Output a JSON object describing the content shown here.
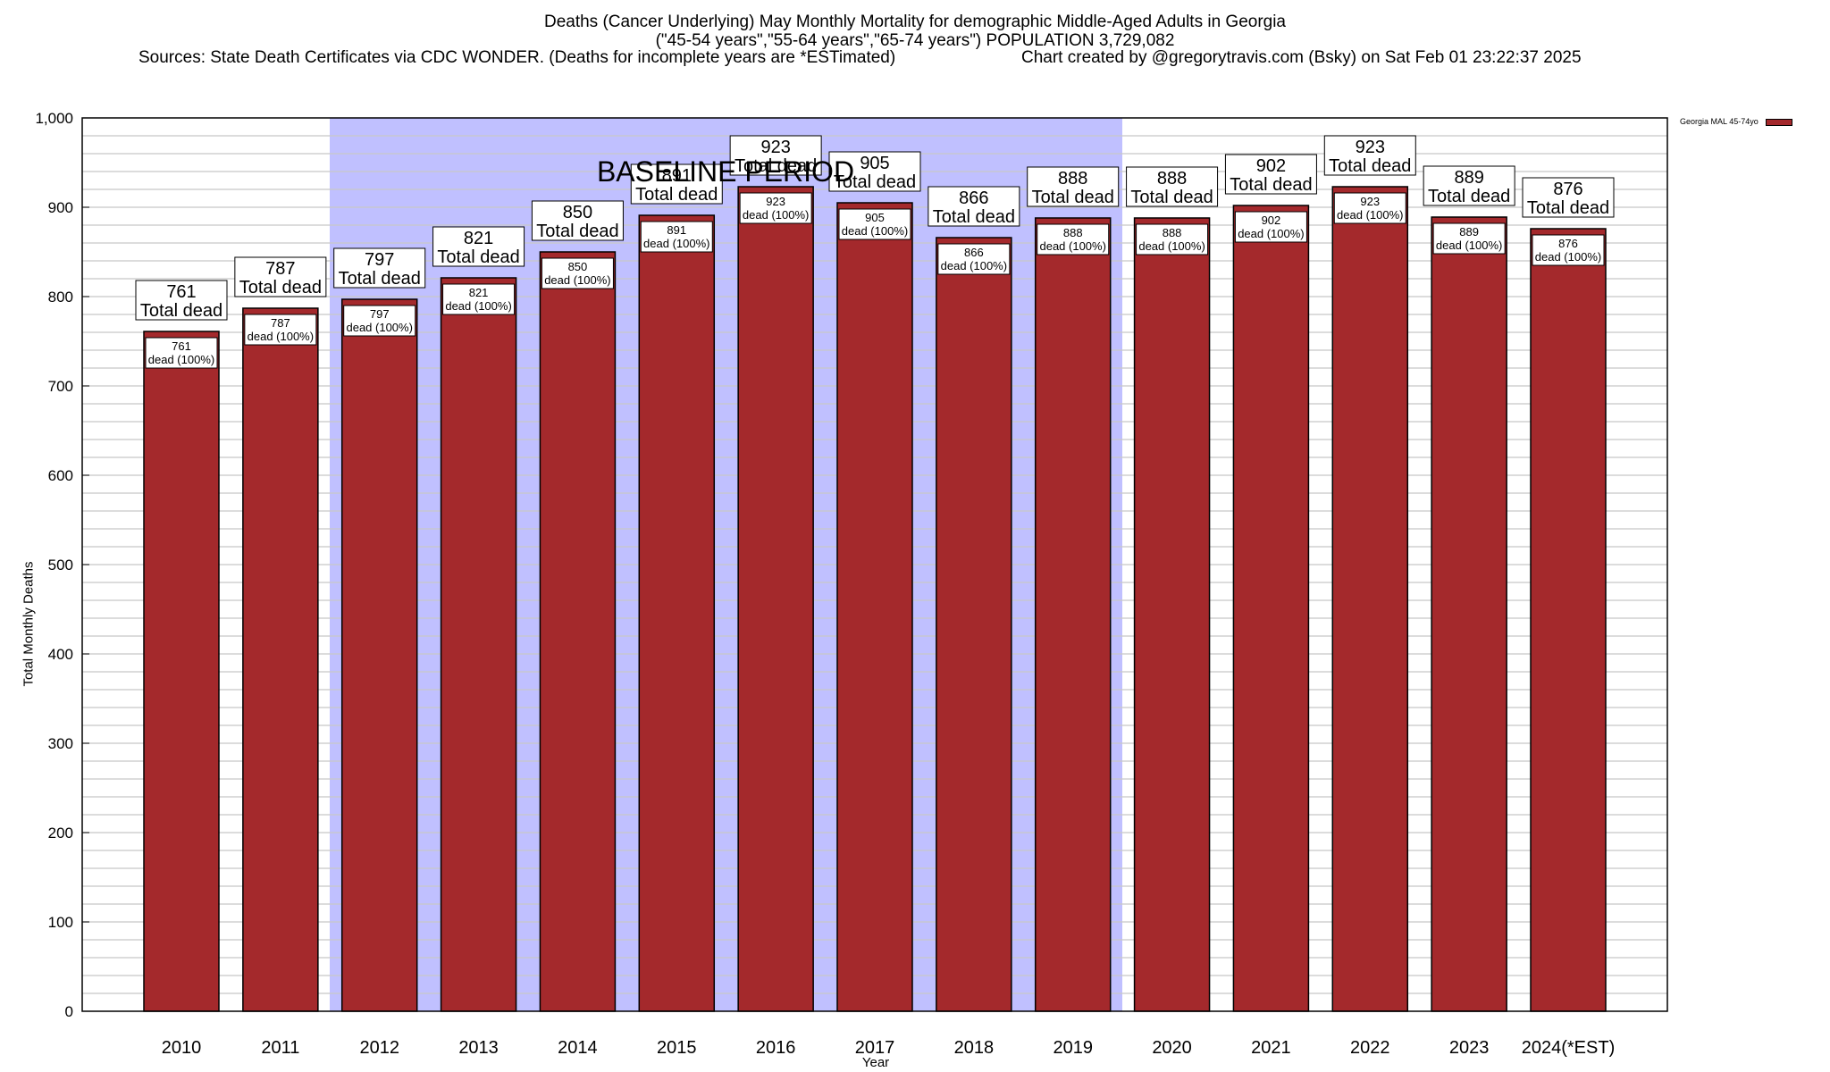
{
  "chart_data": {
    "type": "bar",
    "title": "Deaths (Cancer Underlying) May Monthly Mortality for demographic Middle-Aged Adults in Georgia",
    "subtitle": "(\"45-54 years\",\"55-64 years\",\"65-74 years\") POPULATION 3,729,082",
    "source": "Sources: State Death Certificates via CDC WONDER. (Deaths for incomplete years are *ESTimated)",
    "credit": "Chart created by @gregorytravis.com (Bsky) on Sat Feb 01 23:22:37 2025",
    "xlabel": "Year",
    "ylabel": "Total Monthly Deaths",
    "ylim": [
      0,
      1000
    ],
    "yticks": [
      0,
      100,
      200,
      300,
      400,
      500,
      600,
      700,
      800,
      900,
      1000
    ],
    "ytick_labels": [
      "0",
      "100",
      "200",
      "300",
      "400",
      "500",
      "600",
      "700",
      "800",
      "900",
      "1,000"
    ],
    "minor_grid_step": 20,
    "grid": true,
    "categories": [
      "2010",
      "2011",
      "2012",
      "2013",
      "2014",
      "2015",
      "2016",
      "2017",
      "2018",
      "2019",
      "2020",
      "2021",
      "2022",
      "2023",
      "2024(*EST)"
    ],
    "series": [
      {
        "name": "Georgia MAL 45-74yo",
        "values": [
          761,
          787,
          797,
          821,
          850,
          891,
          923,
          905,
          866,
          888,
          888,
          902,
          923,
          889,
          876
        ]
      }
    ],
    "total_label_suffix": "Total dead",
    "inner_label_suffix": "dead (100%)",
    "baseline": {
      "label": "BASELINE PERIOD",
      "from": "2012",
      "to": "2019"
    },
    "legend": {
      "placement": "top-right",
      "entries": [
        "Georgia MAL 45-74yo"
      ]
    },
    "colors": {
      "bar": "#a4292c",
      "baseline": "#c0c0ff",
      "grid": "#c8c8c8"
    }
  }
}
